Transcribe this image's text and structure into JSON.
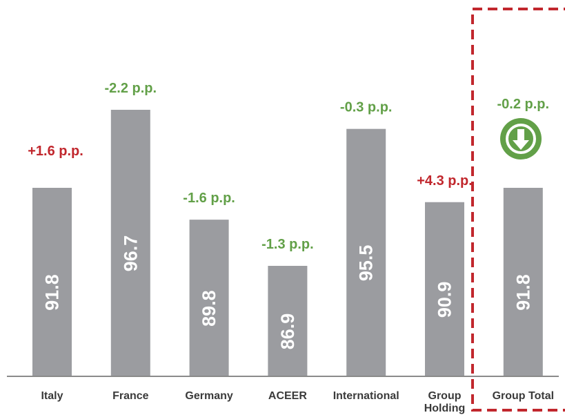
{
  "chart_data": {
    "type": "bar",
    "categories": [
      "Italy",
      "France",
      "Germany",
      "ACEER",
      "International",
      "Group Holding",
      "Group Total"
    ],
    "category_lines": [
      [
        "Italy"
      ],
      [
        "France"
      ],
      [
        "Germany"
      ],
      [
        "ACEER"
      ],
      [
        "International"
      ],
      [
        "Group",
        "Holding"
      ],
      [
        "Group Total"
      ]
    ],
    "values": [
      91.8,
      96.7,
      89.8,
      86.9,
      95.5,
      90.9,
      91.8
    ],
    "value_labels": [
      "91.8",
      "96.7",
      "89.8",
      "86.9",
      "95.5",
      "90.9",
      "91.8"
    ],
    "changes": [
      "+1.6 p.p.",
      "-2.2 p.p.",
      "-1.6 p.p.",
      "-1.3 p.p.",
      "-0.3 p.p.",
      "+4.3 p.p.",
      "-0.2 p.p."
    ],
    "change_sentiment": [
      "negative",
      "positive",
      "positive",
      "positive",
      "positive",
      "negative",
      "positive"
    ],
    "highlighted_category": "Group Total",
    "title": "",
    "xlabel": "",
    "ylabel": "",
    "ylim": [
      80,
      100
    ],
    "grid": false,
    "colors": {
      "bar": "#9b9ca0",
      "bar_label": "#ffffff",
      "positive": "#62a048",
      "negative": "#c1272d",
      "highlight_box": "#c1272d",
      "axis": "#8a8a8a",
      "category_text": "#3a3a3a",
      "indicator": "#62a048"
    },
    "indicator_icon": "down-arrow-circle-icon"
  }
}
